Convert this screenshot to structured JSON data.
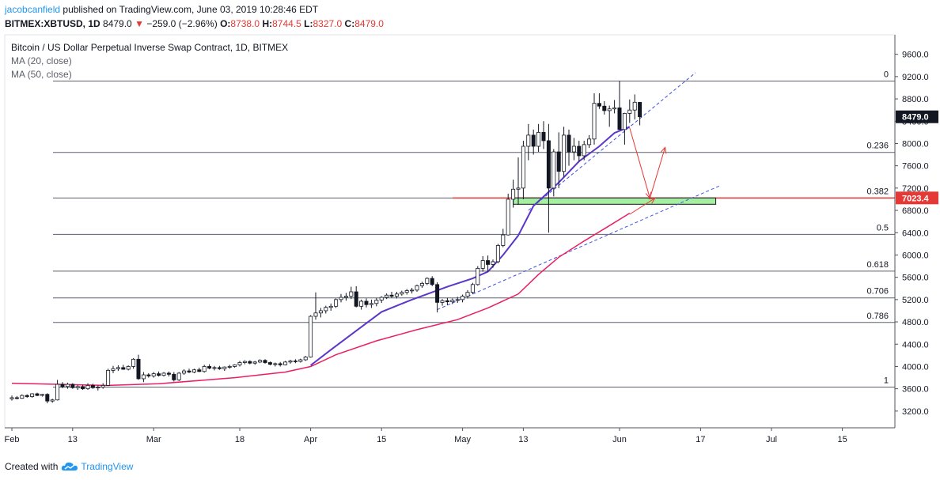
{
  "header": {
    "author": "jacobcanfield",
    "published": "published on TradingView.com, June 03, 2019 10:28:46 EDT"
  },
  "ticker": {
    "symbol": "BITMEX:XBTUSD, 1D",
    "last": "8479.0",
    "arrow": "▼",
    "change": "−259.0 (−2.96%)",
    "o_label": "O:",
    "o": "8738.0",
    "h_label": "H:",
    "h": "8744.5",
    "l_label": "L:",
    "l": "8327.0",
    "c_label": "C:",
    "c": "8479.0"
  },
  "legend": {
    "title": "Bitcoin / US Dollar Perpetual Inverse Swap Contract, 1D, BITMEX",
    "ma20": "MA (20, close)",
    "ma50": "MA (50, close)"
  },
  "footer": {
    "created": "Created with",
    "brand": "TradingView"
  },
  "colors": {
    "up": "#ffffff",
    "down": "#131722",
    "ma20": "#5b36c9",
    "ma50": "#e91e63",
    "fib": "#787b86",
    "red_line": "#e53935",
    "zone": "#a5f0a0",
    "trend": "#3f51e5"
  },
  "chart_data": {
    "type": "candlestick",
    "title": "Bitcoin / US Dollar Perpetual Inverse Swap Contract, 1D, BITMEX",
    "ylim": [
      2900,
      9950
    ],
    "y_ticks": [
      3200,
      3600,
      4000,
      4400,
      4800,
      5200,
      5600,
      6000,
      6400,
      6800,
      7200,
      7600,
      8000,
      8400,
      8800,
      9200,
      9600
    ],
    "x_ticks": [
      {
        "day": 0,
        "label": "Feb"
      },
      {
        "day": 12,
        "label": "13"
      },
      {
        "day": 28,
        "label": "Mar"
      },
      {
        "day": 45,
        "label": "18"
      },
      {
        "day": 59,
        "label": "Apr"
      },
      {
        "day": 73,
        "label": "15"
      },
      {
        "day": 89,
        "label": "May"
      },
      {
        "day": 101,
        "label": "13"
      },
      {
        "day": 120,
        "label": "Jun"
      },
      {
        "day": 136,
        "label": "17"
      },
      {
        "day": 150,
        "label": "Jul"
      },
      {
        "day": 164,
        "label": "15"
      }
    ],
    "last_price": {
      "label": "8479.0",
      "value": 8479
    },
    "red_level": {
      "label": "7023.4",
      "value": 7023.4
    },
    "fib_levels": [
      {
        "ratio": "0",
        "value": 9120
      },
      {
        "ratio": "0.236",
        "value": 7840
      },
      {
        "ratio": "0.382",
        "value": 7023.4
      },
      {
        "ratio": "0.5",
        "value": 6370
      },
      {
        "ratio": "0.618",
        "value": 5710
      },
      {
        "ratio": "0.706",
        "value": 5230
      },
      {
        "ratio": "0.786",
        "value": 4790
      },
      {
        "ratio": "1",
        "value": 3630
      }
    ],
    "ohlc": [
      [
        3420,
        3480,
        3390,
        3440
      ],
      [
        3440,
        3470,
        3410,
        3430
      ],
      [
        3430,
        3500,
        3420,
        3480
      ],
      [
        3480,
        3500,
        3440,
        3460
      ],
      [
        3460,
        3520,
        3440,
        3510
      ],
      [
        3510,
        3530,
        3470,
        3480
      ],
      [
        3480,
        3510,
        3460,
        3500
      ],
      [
        3500,
        3520,
        3340,
        3380
      ],
      [
        3380,
        3420,
        3350,
        3400
      ],
      [
        3400,
        3760,
        3390,
        3680
      ],
      [
        3680,
        3720,
        3610,
        3640
      ],
      [
        3640,
        3710,
        3600,
        3680
      ],
      [
        3680,
        3700,
        3600,
        3620
      ],
      [
        3620,
        3670,
        3580,
        3640
      ],
      [
        3640,
        3670,
        3580,
        3600
      ],
      [
        3600,
        3700,
        3580,
        3660
      ],
      [
        3660,
        3690,
        3600,
        3620
      ],
      [
        3620,
        3660,
        3570,
        3630
      ],
      [
        3630,
        3700,
        3600,
        3660
      ],
      [
        3660,
        3960,
        3650,
        3930
      ],
      [
        3930,
        4010,
        3880,
        3960
      ],
      [
        3960,
        4020,
        3920,
        3980
      ],
      [
        3980,
        4030,
        3940,
        3950
      ],
      [
        3950,
        4020,
        3930,
        4000
      ],
      [
        4000,
        4150,
        3960,
        4130
      ],
      [
        4130,
        4210,
        3760,
        3780
      ],
      [
        3780,
        3900,
        3720,
        3850
      ],
      [
        3850,
        3880,
        3800,
        3830
      ],
      [
        3830,
        3900,
        3800,
        3870
      ],
      [
        3870,
        3910,
        3820,
        3840
      ],
      [
        3840,
        3900,
        3820,
        3880
      ],
      [
        3880,
        3910,
        3820,
        3860
      ],
      [
        3860,
        3900,
        3730,
        3760
      ],
      [
        3760,
        3900,
        3740,
        3880
      ],
      [
        3880,
        3950,
        3850,
        3920
      ],
      [
        3920,
        3960,
        3880,
        3900
      ],
      [
        3900,
        3960,
        3880,
        3940
      ],
      [
        3940,
        3980,
        3900,
        3910
      ],
      [
        3910,
        4030,
        3890,
        4000
      ],
      [
        4000,
        4040,
        3950,
        3970
      ],
      [
        3970,
        4010,
        3930,
        3980
      ],
      [
        3980,
        4010,
        3940,
        3960
      ],
      [
        3960,
        4000,
        3920,
        3990
      ],
      [
        3990,
        4030,
        3960,
        4000
      ],
      [
        4000,
        4040,
        3980,
        4030
      ],
      [
        4030,
        4100,
        4000,
        4070
      ],
      [
        4070,
        4110,
        4040,
        4090
      ],
      [
        4090,
        4110,
        4040,
        4060
      ],
      [
        4060,
        4100,
        4030,
        4080
      ],
      [
        4080,
        4130,
        4060,
        4110
      ],
      [
        4110,
        4130,
        4050,
        4070
      ],
      [
        4070,
        4090,
        4020,
        4040
      ],
      [
        4040,
        4070,
        4000,
        4050
      ],
      [
        4050,
        4080,
        4000,
        4030
      ],
      [
        4030,
        4100,
        4020,
        4080
      ],
      [
        4080,
        4120,
        4050,
        4100
      ],
      [
        4100,
        4130,
        4060,
        4090
      ],
      [
        4090,
        4140,
        4070,
        4120
      ],
      [
        4120,
        4190,
        4100,
        4170
      ],
      [
        4170,
        4920,
        4160,
        4900
      ],
      [
        4900,
        5330,
        4840,
        4960
      ],
      [
        4960,
        5050,
        4880,
        5000
      ],
      [
        5000,
        5090,
        4950,
        5060
      ],
      [
        5060,
        5130,
        5000,
        5080
      ],
      [
        5080,
        5220,
        5050,
        5200
      ],
      [
        5200,
        5300,
        5150,
        5240
      ],
      [
        5240,
        5320,
        5180,
        5260
      ],
      [
        5260,
        5430,
        5210,
        5340
      ],
      [
        5340,
        5440,
        5060,
        5080
      ],
      [
        5080,
        5200,
        5020,
        5170
      ],
      [
        5170,
        5220,
        5060,
        5110
      ],
      [
        5110,
        5200,
        5050,
        5130
      ],
      [
        5130,
        5230,
        5080,
        5190
      ],
      [
        5190,
        5260,
        5140,
        5240
      ],
      [
        5240,
        5310,
        5210,
        5280
      ],
      [
        5280,
        5340,
        5230,
        5260
      ],
      [
        5260,
        5340,
        5220,
        5300
      ],
      [
        5300,
        5360,
        5270,
        5330
      ],
      [
        5330,
        5390,
        5290,
        5360
      ],
      [
        5360,
        5410,
        5310,
        5370
      ],
      [
        5370,
        5470,
        5340,
        5450
      ],
      [
        5450,
        5520,
        5410,
        5490
      ],
      [
        5490,
        5600,
        5460,
        5580
      ],
      [
        5580,
        5620,
        5440,
        5470
      ],
      [
        5470,
        5510,
        4970,
        5150
      ],
      [
        5150,
        5210,
        5090,
        5180
      ],
      [
        5180,
        5230,
        5100,
        5160
      ],
      [
        5160,
        5220,
        5120,
        5190
      ],
      [
        5190,
        5250,
        5140,
        5200
      ],
      [
        5200,
        5290,
        5150,
        5260
      ],
      [
        5260,
        5370,
        5220,
        5330
      ],
      [
        5330,
        5500,
        5300,
        5470
      ],
      [
        5470,
        5800,
        5450,
        5760
      ],
      [
        5760,
        5980,
        5700,
        5900
      ],
      [
        5900,
        5990,
        5700,
        5830
      ],
      [
        5830,
        5920,
        5770,
        5880
      ],
      [
        5880,
        6200,
        5850,
        6170
      ],
      [
        6170,
        6470,
        6140,
        6360
      ],
      [
        6360,
        7100,
        6350,
        7000
      ],
      [
        7000,
        7350,
        6850,
        7180
      ],
      [
        7180,
        7750,
        6900,
        7200
      ],
      [
        7200,
        8050,
        7000,
        7950
      ],
      [
        7950,
        8350,
        7700,
        8150
      ],
      [
        8150,
        8250,
        7800,
        7950
      ],
      [
        7950,
        8350,
        7850,
        8200
      ],
      [
        8200,
        8400,
        7900,
        8050
      ],
      [
        8050,
        8350,
        6400,
        7200
      ],
      [
        7200,
        7900,
        7050,
        7850
      ],
      [
        7850,
        8200,
        7200,
        7500
      ],
      [
        7500,
        8300,
        7400,
        8150
      ],
      [
        8150,
        8250,
        7600,
        7850
      ],
      [
        7850,
        8100,
        7700,
        7950
      ],
      [
        7950,
        8050,
        7680,
        7780
      ],
      [
        7780,
        8050,
        7700,
        7980
      ],
      [
        7980,
        8150,
        7920,
        8080
      ],
      [
        8080,
        8900,
        7980,
        8720
      ],
      [
        8720,
        8900,
        8620,
        8670
      ],
      [
        8670,
        8760,
        8520,
        8590
      ],
      [
        8590,
        8680,
        8300,
        8620
      ],
      [
        8620,
        8780,
        8540,
        8640
      ],
      [
        8640,
        9120,
        8250,
        8250
      ],
      [
        8250,
        8550,
        7980,
        8540
      ],
      [
        8540,
        8790,
        8370,
        8600
      ],
      [
        8600,
        8880,
        8430,
        8740
      ],
      [
        8738,
        8744.5,
        8327,
        8479
      ]
    ],
    "ma20": [
      [
        59,
        4020
      ],
      [
        63,
        4300
      ],
      [
        68,
        4640
      ],
      [
        73,
        4980
      ],
      [
        79,
        5200
      ],
      [
        86,
        5430
      ],
      [
        91,
        5580
      ],
      [
        94,
        5700
      ],
      [
        97,
        6000
      ],
      [
        100,
        6350
      ],
      [
        103,
        6880
      ],
      [
        108,
        7300
      ],
      [
        112,
        7680
      ],
      [
        116,
        7950
      ],
      [
        119,
        8190
      ],
      [
        122,
        8300
      ]
    ],
    "ma50": [
      [
        0,
        3700
      ],
      [
        9,
        3680
      ],
      [
        19,
        3660
      ],
      [
        29,
        3690
      ],
      [
        44,
        3800
      ],
      [
        54,
        3900
      ],
      [
        59,
        4000
      ],
      [
        64,
        4210
      ],
      [
        72,
        4460
      ],
      [
        80,
        4660
      ],
      [
        88,
        4840
      ],
      [
        94,
        5050
      ],
      [
        100,
        5300
      ],
      [
        104,
        5650
      ],
      [
        108,
        5960
      ],
      [
        113,
        6250
      ],
      [
        117,
        6470
      ],
      [
        122,
        6750
      ]
    ],
    "trend_lines": [
      {
        "x1": 102,
        "y1": 6800,
        "x2": 135,
        "y2": 9270
      },
      {
        "x1": 84,
        "y1": 5020,
        "x2": 140,
        "y2": 7250
      }
    ],
    "zone": {
      "x1": 99,
      "x2": 139,
      "y1": 6910,
      "y2": 7023.4
    },
    "arrows": [
      {
        "x1": 122,
        "y1": 8280,
        "x2": 126,
        "y2": 7020
      },
      {
        "x1": 126,
        "y1": 7020,
        "x2": 129,
        "y2": 7930
      },
      {
        "x1": 122,
        "y1": 6730,
        "x2": 127,
        "y2": 7020
      }
    ]
  }
}
